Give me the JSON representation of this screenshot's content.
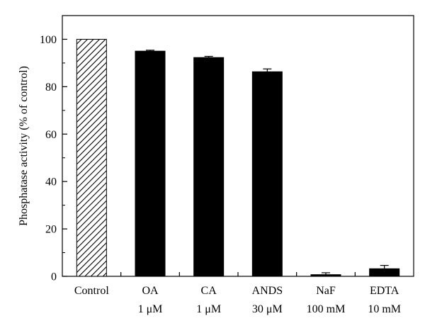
{
  "chart_data": {
    "type": "bar",
    "title": "",
    "xlabel": "",
    "ylabel": "Phosphatase activity (% of control)",
    "ylim": [
      0,
      110
    ],
    "yticks": [
      0,
      20,
      40,
      60,
      80,
      100
    ],
    "grid": false,
    "legend": "none",
    "categories": [
      {
        "name": "Control",
        "dose": ""
      },
      {
        "name": "OA",
        "dose": "1 μM"
      },
      {
        "name": "CA",
        "dose": "1 μM"
      },
      {
        "name": "ANDS",
        "dose": "30 μM"
      },
      {
        "name": "NaF",
        "dose": "100 mM"
      },
      {
        "name": "EDTA",
        "dose": "10 mM"
      }
    ],
    "values": [
      100,
      95,
      92.3,
      86.3,
      0.7,
      3.2
    ],
    "errors": [
      0,
      0.4,
      0.5,
      1.2,
      0.8,
      1.4
    ],
    "fills": [
      "hatch",
      "solid",
      "solid",
      "solid",
      "solid",
      "solid"
    ],
    "colors": {
      "bar": "#000000",
      "hatch": "#000000",
      "background": "#ffffff"
    }
  }
}
